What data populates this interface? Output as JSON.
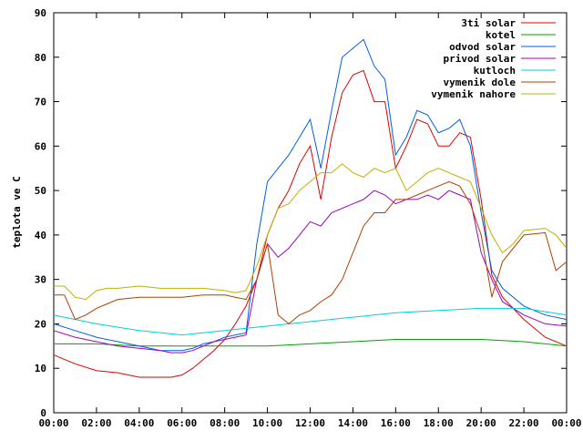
{
  "chart_data": {
    "type": "line",
    "ylabel": "teplota ve C",
    "xlabel": "",
    "title": "",
    "xlim": [
      0,
      24
    ],
    "ylim": [
      0,
      90
    ],
    "x_ticks": [
      "00:00",
      "02:00",
      "04:00",
      "06:00",
      "08:00",
      "10:00",
      "12:00",
      "14:00",
      "16:00",
      "18:00",
      "20:00",
      "22:00",
      "00:00"
    ],
    "y_ticks": [
      "0",
      "10",
      "20",
      "30",
      "40",
      "50",
      "60",
      "70",
      "80",
      "90"
    ],
    "legend_position": "top-right",
    "grid": false,
    "series": [
      {
        "name": "3ti solar",
        "color": "#e00000",
        "x": [
          0,
          1,
          2,
          3,
          4,
          5,
          5.5,
          6,
          6.5,
          7,
          7.5,
          8,
          8.5,
          9,
          9.5,
          10,
          10.5,
          11,
          11.5,
          12,
          12.5,
          13,
          13.5,
          14,
          14.5,
          15,
          15.5,
          16,
          16.5,
          17,
          17.5,
          18,
          18.5,
          19,
          19.5,
          20,
          20.5,
          21,
          22,
          23,
          24
        ],
        "y": [
          13,
          11,
          9.5,
          9,
          8,
          8,
          8,
          8.5,
          10,
          12,
          14,
          16.5,
          20,
          24,
          30,
          40,
          46,
          50,
          56,
          60,
          48,
          62,
          72,
          76,
          77,
          70,
          70,
          55,
          60,
          66,
          65,
          60,
          60,
          63,
          62,
          48,
          31,
          26,
          21,
          17,
          15
        ]
      },
      {
        "name": "kotel",
        "color": "#00a000",
        "x": [
          0,
          2,
          4,
          6,
          8,
          10,
          12,
          14,
          16,
          18,
          20,
          22,
          24
        ],
        "y": [
          15.5,
          15.5,
          15,
          15,
          15,
          15,
          15.5,
          16,
          16.5,
          16.5,
          16.5,
          16,
          15
        ]
      },
      {
        "name": "odvod solar",
        "color": "#0060e0",
        "x": [
          0,
          1,
          2,
          3,
          4,
          5,
          5.5,
          6,
          6.5,
          7,
          7.5,
          8,
          8.5,
          9,
          9.5,
          10,
          10.5,
          11,
          11.5,
          12,
          12.5,
          13,
          13.5,
          14,
          14.5,
          15,
          15.5,
          16,
          16.5,
          17,
          17.5,
          18,
          18.5,
          19,
          19.5,
          20,
          20.5,
          21,
          22,
          23,
          24
        ],
        "y": [
          20,
          18.5,
          17,
          16,
          15,
          14,
          14,
          14,
          14.5,
          15.5,
          16,
          17,
          17.5,
          18,
          38,
          52,
          55,
          58,
          62,
          66,
          55,
          68,
          80,
          82,
          84,
          78,
          75,
          58,
          62,
          68,
          67,
          63,
          64,
          66,
          60,
          45,
          32,
          28,
          24,
          22,
          21
        ]
      },
      {
        "name": "privod solar",
        "color": "#a000c0",
        "x": [
          0,
          1,
          2,
          3,
          4,
          5,
          5.5,
          6,
          6.5,
          7,
          7.5,
          8,
          8.5,
          9,
          9.5,
          10,
          10.5,
          11,
          11.5,
          12,
          12.5,
          13,
          13.5,
          14,
          14.5,
          15,
          15.5,
          16,
          16.5,
          17,
          17.5,
          18,
          18.5,
          19,
          19.5,
          20,
          20.5,
          21,
          22,
          23,
          24
        ],
        "y": [
          18.5,
          17,
          16,
          15,
          14.5,
          14,
          13.5,
          13.5,
          14,
          15,
          16,
          16.5,
          17,
          17.5,
          30,
          38,
          35,
          37,
          40,
          43,
          42,
          45,
          46,
          47,
          48,
          50,
          49,
          47,
          48,
          48,
          49,
          48,
          50,
          49,
          48,
          36,
          30,
          25,
          22,
          20,
          19.5
        ]
      },
      {
        "name": "kutloch",
        "color": "#00d0d0",
        "x": [
          0,
          2,
          4,
          6,
          8,
          10,
          12,
          14,
          16,
          18,
          20,
          22,
          24
        ],
        "y": [
          22,
          20,
          18.5,
          17.5,
          18.5,
          19.5,
          20.5,
          21.5,
          22.5,
          23,
          23.5,
          23.5,
          22
        ]
      },
      {
        "name": "vymenik dole",
        "color": "#b04000",
        "x": [
          0,
          0.5,
          1,
          1.5,
          2,
          2.5,
          3,
          4,
          5,
          6,
          7,
          8,
          8.5,
          9,
          9.5,
          10,
          10.5,
          11,
          11.5,
          12,
          12.5,
          13,
          13.5,
          14,
          14.5,
          15,
          15.5,
          16,
          16.5,
          17,
          17.5,
          18,
          18.5,
          19,
          19.5,
          20,
          20.5,
          21,
          21.5,
          22,
          23,
          23.5,
          24
        ],
        "y": [
          26.5,
          26.5,
          21,
          22,
          23.5,
          24.5,
          25.5,
          26,
          26,
          26,
          26.5,
          26.5,
          26,
          25.5,
          30,
          38,
          22,
          20,
          22,
          23,
          25,
          26.5,
          30,
          36,
          42,
          45,
          45,
          48,
          48,
          49,
          50,
          51,
          52,
          51,
          47,
          40,
          26,
          34,
          37,
          40,
          40.5,
          32,
          34
        ]
      },
      {
        "name": "vymenik nahore",
        "color": "#c0b000",
        "x": [
          0,
          0.5,
          1,
          1.5,
          2,
          2.5,
          3,
          4,
          5,
          6,
          7,
          8,
          8.5,
          9,
          9.5,
          10,
          10.5,
          11,
          11.5,
          12,
          12.5,
          13,
          13.5,
          14,
          14.5,
          15,
          15.5,
          16,
          16.5,
          17,
          17.5,
          18,
          18.5,
          19,
          19.5,
          20,
          20.5,
          21,
          21.5,
          22,
          23,
          23.5,
          24
        ],
        "y": [
          28.5,
          28.5,
          26,
          25.5,
          27.5,
          28,
          28,
          28.5,
          28,
          28,
          28,
          27.5,
          27,
          27.5,
          33,
          40,
          46,
          47,
          50,
          52,
          54,
          54,
          56,
          54,
          53,
          55,
          54,
          55,
          50,
          52,
          54,
          55,
          54,
          53,
          52,
          46,
          40,
          36,
          38,
          41,
          41.5,
          40,
          37
        ]
      }
    ]
  }
}
